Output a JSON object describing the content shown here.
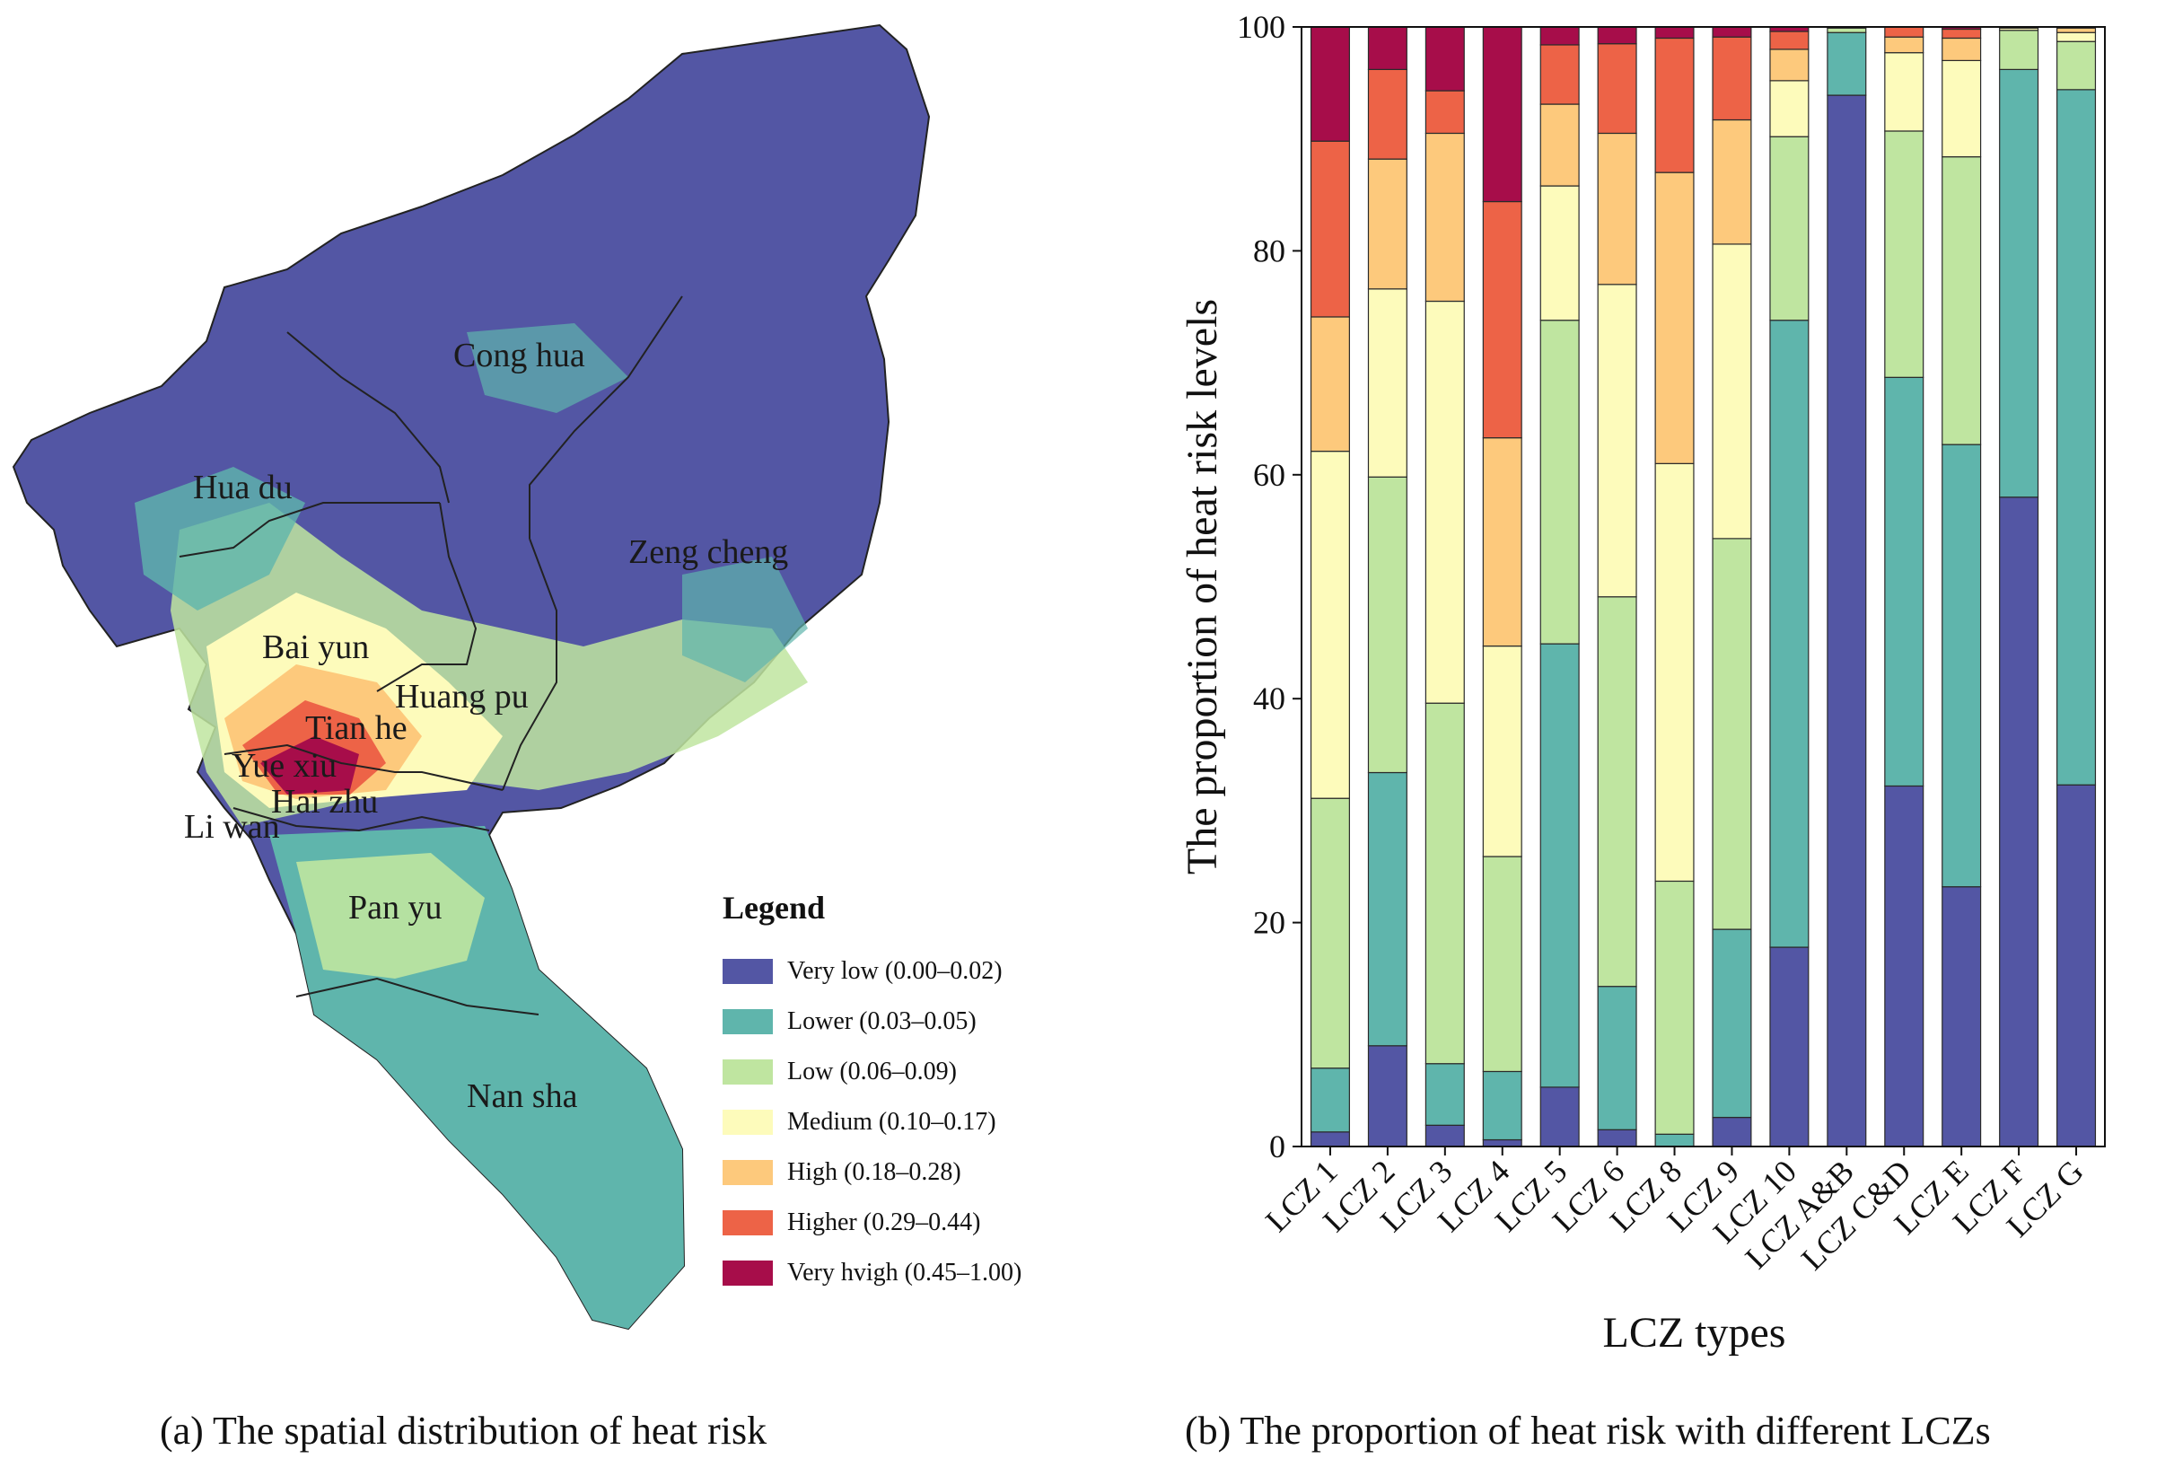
{
  "panel_a": {
    "caption": "(a) The spatial distribution of heat risk",
    "districts": [
      "Cong hua",
      "Hua du",
      "Zeng cheng",
      "Bai yun",
      "Huang pu",
      "Tian he",
      "Yue xiu",
      "Hai zhu",
      "Li wan",
      "Pan yu",
      "Nan sha"
    ],
    "legend": {
      "title": "Legend",
      "items": [
        {
          "label": "Very low (0.00–0.02)",
          "color": "#5356a4"
        },
        {
          "label": "Lower (0.03–0.05)",
          "color": "#5fb5ac"
        },
        {
          "label": "Low (0.06–0.09)",
          "color": "#bfe5a0"
        },
        {
          "label": "Medium (0.10–0.17)",
          "color": "#fdfbbb"
        },
        {
          "label": "High (0.18–0.28)",
          "color": "#fdc97c"
        },
        {
          "label": "Higher (0.29–0.44)",
          "color": "#ed6347"
        },
        {
          "label": "Very hvigh (0.45–1.00)",
          "color": "#a70d4a"
        }
      ]
    }
  },
  "panel_b": {
    "caption": "(b) The proportion of heat risk with different LCZs"
  },
  "chart_data": {
    "type": "bar",
    "stacked": true,
    "title": "",
    "xlabel": "LCZ types",
    "ylabel": "The proportion of heat risk levels",
    "ylim": [
      0,
      100
    ],
    "yticks": [
      0,
      20,
      40,
      60,
      80,
      100
    ],
    "categories": [
      "LCZ 1",
      "LCZ 2",
      "LCZ 3",
      "LCZ 4",
      "LCZ 5",
      "LCZ 6",
      "LCZ 8",
      "LCZ 9",
      "LCZ 10",
      "LCZ A&B",
      "LCZ C&D",
      "LCZ E",
      "LCZ F",
      "LCZ G"
    ],
    "series": [
      {
        "name": "Very low",
        "color": "#5356a4",
        "values": [
          1.3,
          9.0,
          1.9,
          0.6,
          5.3,
          1.5,
          0.0,
          2.6,
          17.8,
          93.9,
          32.2,
          23.2,
          58.0,
          32.3
        ]
      },
      {
        "name": "Lower",
        "color": "#5fb5ac",
        "values": [
          5.7,
          24.4,
          5.5,
          6.1,
          39.6,
          12.8,
          1.1,
          16.8,
          56.0,
          5.6,
          36.5,
          39.5,
          38.2,
          62.1
        ]
      },
      {
        "name": "Low",
        "color": "#bfe5a0",
        "values": [
          24.1,
          26.4,
          32.2,
          19.2,
          28.9,
          34.8,
          22.6,
          34.9,
          16.4,
          0.4,
          22.0,
          25.7,
          3.5,
          4.3
        ]
      },
      {
        "name": "Medium",
        "color": "#fdfbbb",
        "values": [
          31.0,
          16.8,
          35.9,
          18.8,
          12.0,
          27.9,
          37.3,
          26.3,
          5.0,
          0.1,
          7.0,
          8.6,
          0.2,
          0.8
        ]
      },
      {
        "name": "High",
        "color": "#fdc97c",
        "values": [
          12.0,
          11.6,
          15.0,
          18.6,
          7.3,
          13.5,
          26.0,
          11.1,
          2.8,
          0.0,
          1.4,
          2.0,
          0.1,
          0.4
        ]
      },
      {
        "name": "Higher",
        "color": "#ed6347",
        "values": [
          15.7,
          8.0,
          3.8,
          21.1,
          5.3,
          8.0,
          12.0,
          7.4,
          1.6,
          0.0,
          0.9,
          0.8,
          0.0,
          0.1
        ]
      },
      {
        "name": "Very high",
        "color": "#a70d4a",
        "values": [
          10.2,
          3.8,
          5.7,
          15.6,
          1.6,
          1.5,
          1.0,
          0.9,
          0.4,
          0.0,
          0.0,
          0.2,
          0.0,
          0.0
        ]
      }
    ]
  }
}
